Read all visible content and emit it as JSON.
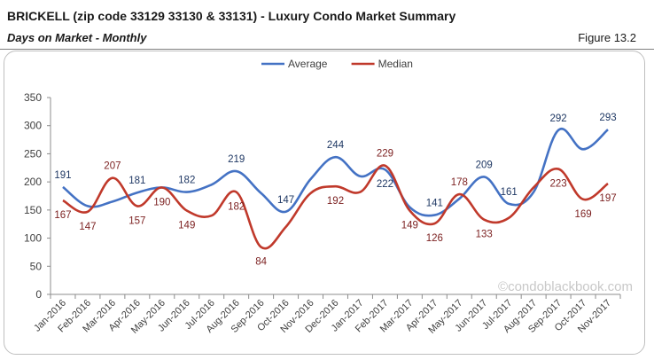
{
  "header": {
    "title": "BRICKELL (zip code 33129 33130 & 33131) - Luxury Condo Market Summary",
    "subtitle": "Days on Market - Monthly",
    "figure": "Figure 13.2"
  },
  "watermark": "©condoblackbook.com",
  "chart_data": {
    "type": "line",
    "categories": [
      "Jan-2016",
      "Feb-2016",
      "Mar-2016",
      "Apr-2016",
      "May-2016",
      "Jun-2016",
      "Jul-2016",
      "Aug-2016",
      "Sep-2016",
      "Oct-2016",
      "Nov-2016",
      "Dec-2016",
      "Jan-2017",
      "Feb-2017",
      "Mar-2017",
      "Apr-2017",
      "May-2017",
      "Jun-2017",
      "Jul-2017",
      "Aug-2017",
      "Sep-2017",
      "Oct-2017",
      "Nov-2017"
    ],
    "series": [
      {
        "name": "Average",
        "color": "#4472c4",
        "values": [
          191,
          157,
          165,
          181,
          190,
          182,
          195,
          219,
          180,
          147,
          205,
          244,
          210,
          222,
          155,
          141,
          170,
          209,
          161,
          182,
          292,
          258,
          293
        ],
        "labels": [
          "191",
          null,
          null,
          "181",
          null,
          "182",
          null,
          "219",
          null,
          "147",
          null,
          "244",
          null,
          "222",
          null,
          "141",
          null,
          "209",
          "161",
          null,
          "292",
          null,
          "293"
        ]
      },
      {
        "name": "Median",
        "color": "#c0392b",
        "values": [
          167,
          147,
          207,
          157,
          190,
          149,
          140,
          182,
          84,
          120,
          180,
          192,
          182,
          229,
          149,
          126,
          178,
          133,
          136,
          190,
          223,
          169,
          197
        ],
        "labels": [
          "167",
          "147",
          "207",
          "157",
          "190",
          "149",
          null,
          "182",
          "84",
          null,
          null,
          "192",
          null,
          "229",
          "149",
          "126",
          "178",
          "133",
          null,
          null,
          "223",
          "169",
          "197"
        ]
      }
    ],
    "ylim": [
      0,
      350
    ],
    "yticks": [
      0,
      50,
      100,
      150,
      200,
      250,
      300,
      350
    ],
    "grid": false,
    "legend": "top-center"
  }
}
